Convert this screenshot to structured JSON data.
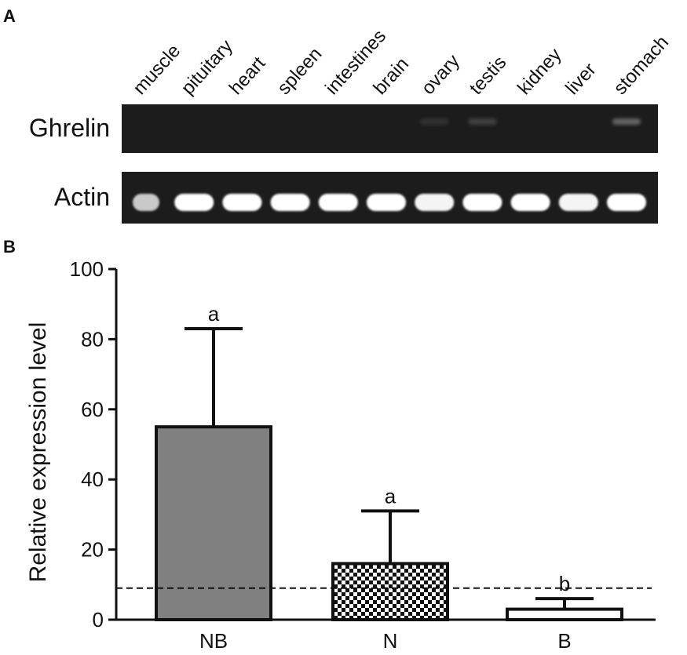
{
  "panel_a": {
    "letter": "A",
    "lanes": [
      "muscle",
      "pituitary",
      "heart",
      "spleen",
      "intestines",
      "brain",
      "ovary",
      "testis",
      "kidney",
      "liver",
      "stomach"
    ],
    "rows": [
      {
        "label": "Ghrelin",
        "band_intensity": [
          0.0,
          0.0,
          0.0,
          0.0,
          0.0,
          0.0,
          0.08,
          0.18,
          0.0,
          0.0,
          0.45
        ]
      },
      {
        "label": "Actin",
        "band_intensity": [
          0.75,
          1,
          1,
          1,
          1,
          1,
          0.95,
          1,
          1,
          0.95,
          1
        ]
      }
    ]
  },
  "panel_b": {
    "letter": "B"
  },
  "chart_data": {
    "type": "bar",
    "categories": [
      "NB",
      "N",
      "B"
    ],
    "values": [
      55,
      16,
      3
    ],
    "error_upper": [
      83,
      31,
      6
    ],
    "significance_labels": [
      "a",
      "a",
      "b"
    ],
    "bar_fills": [
      "gray",
      "checkered",
      "white"
    ],
    "bar_colors": {
      "gray": "#808080",
      "outline": "#111111"
    },
    "reference_line": 9,
    "ylabel": "Relative expression level",
    "xlabel": "",
    "ylim": [
      0,
      100
    ],
    "yticks": [
      0,
      20,
      40,
      60,
      80,
      100
    ],
    "grid": false
  }
}
